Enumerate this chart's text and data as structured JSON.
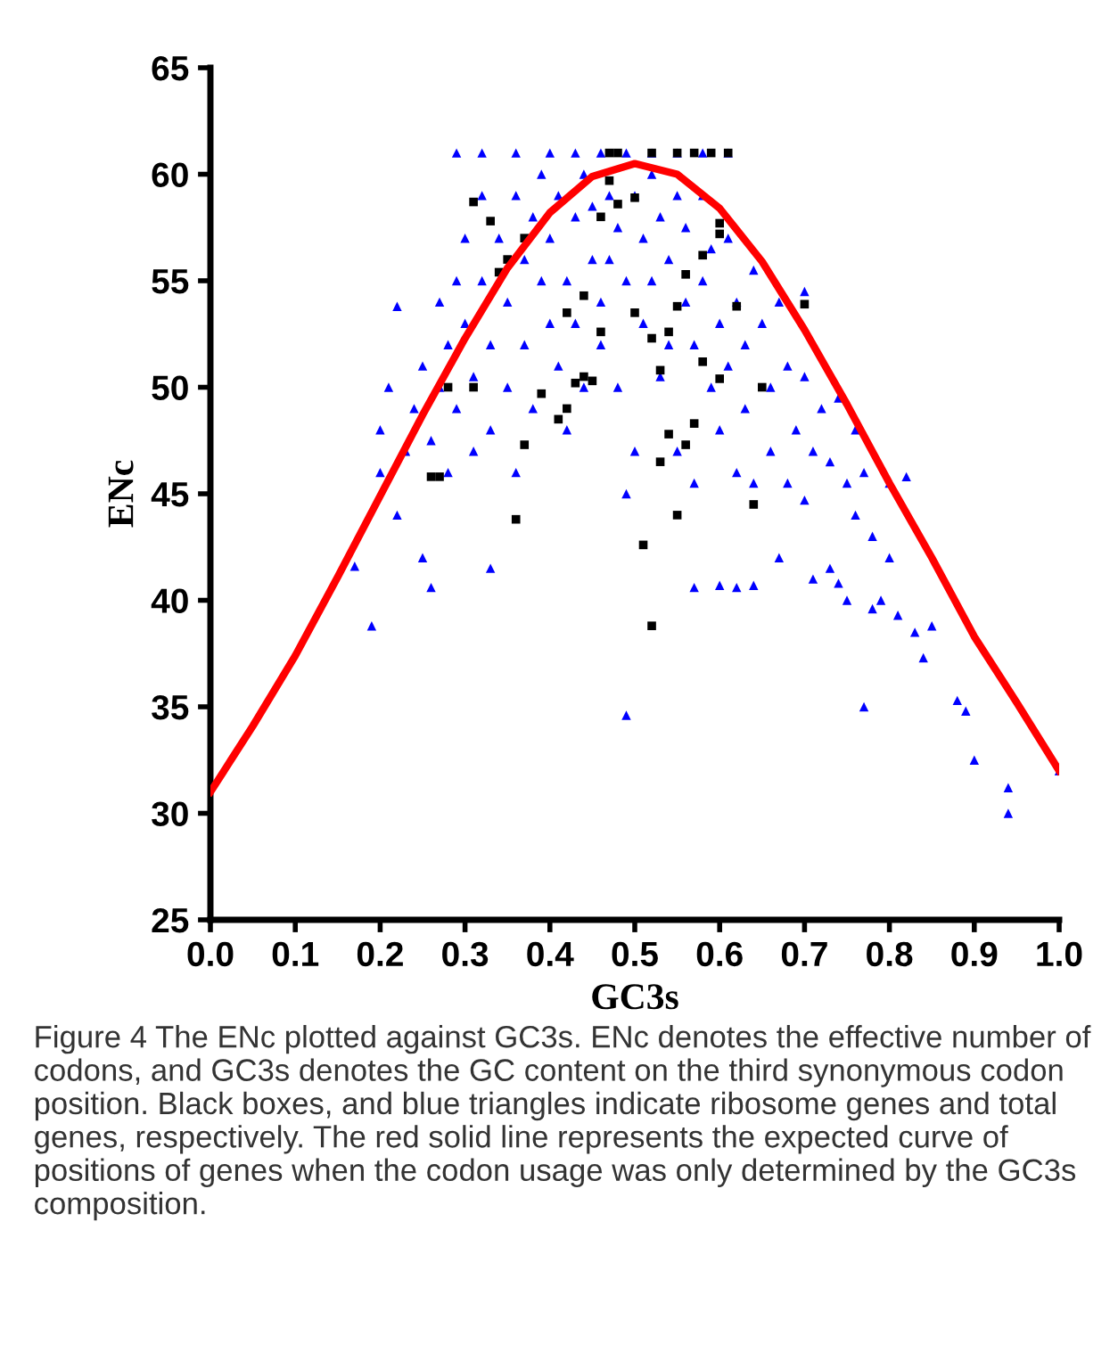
{
  "chart_data": {
    "type": "scatter",
    "xlabel": "GC3s",
    "ylabel": "ENc",
    "xlim": [
      0,
      1
    ],
    "ylim": [
      25,
      65
    ],
    "xticks": [
      {
        "value": 0,
        "label": "0.0"
      },
      {
        "value": 0.1,
        "label": "0.1"
      },
      {
        "value": 0.2,
        "label": "0.2"
      },
      {
        "value": 0.3,
        "label": "0.3"
      },
      {
        "value": 0.4,
        "label": "0.4"
      },
      {
        "value": 0.5,
        "label": "0.5"
      },
      {
        "value": 0.6,
        "label": "0.6"
      },
      {
        "value": 0.7,
        "label": "0.7"
      },
      {
        "value": 0.8,
        "label": "0.8"
      },
      {
        "value": 0.9,
        "label": "0.9"
      },
      {
        "value": 1,
        "label": "1.0"
      }
    ],
    "yticks": [
      25,
      30,
      35,
      40,
      45,
      50,
      55,
      60,
      65
    ],
    "grid": false,
    "legend": false,
    "series": [
      {
        "marker": "triangle",
        "color": "#0000ff",
        "x": [
          0.17,
          0.19,
          0.2,
          0.22,
          0.25,
          0.26,
          0.33,
          0.49,
          0.57,
          0.6,
          0.62,
          0.64,
          0.67,
          0.7,
          0.71,
          0.73,
          0.74,
          0.75,
          0.76,
          0.77,
          0.78,
          0.79,
          0.8,
          0.81,
          0.82,
          0.83,
          0.84,
          0.85,
          0.88,
          0.89,
          0.9,
          0.94,
          0.94,
          1.0,
          0.2,
          0.21,
          0.22,
          0.23,
          0.24,
          0.25,
          0.26,
          0.27,
          0.27,
          0.28,
          0.28,
          0.29,
          0.29,
          0.3,
          0.3,
          0.31,
          0.31,
          0.32,
          0.32,
          0.33,
          0.33,
          0.34,
          0.35,
          0.35,
          0.36,
          0.36,
          0.37,
          0.37,
          0.38,
          0.38,
          0.39,
          0.39,
          0.4,
          0.4,
          0.41,
          0.41,
          0.42,
          0.42,
          0.43,
          0.43,
          0.44,
          0.44,
          0.45,
          0.45,
          0.46,
          0.46,
          0.47,
          0.47,
          0.48,
          0.48,
          0.49,
          0.49,
          0.5,
          0.5,
          0.51,
          0.51,
          0.52,
          0.52,
          0.53,
          0.53,
          0.54,
          0.54,
          0.55,
          0.55,
          0.56,
          0.56,
          0.57,
          0.57,
          0.58,
          0.58,
          0.59,
          0.59,
          0.6,
          0.6,
          0.61,
          0.61,
          0.62,
          0.62,
          0.63,
          0.63,
          0.64,
          0.64,
          0.65,
          0.66,
          0.66,
          0.67,
          0.68,
          0.68,
          0.69,
          0.7,
          0.7,
          0.71,
          0.72,
          0.73,
          0.74,
          0.75,
          0.76,
          0.77,
          0.78,
          0.8,
          0.29,
          0.32,
          0.36,
          0.4,
          0.43,
          0.46,
          0.49,
          0.52,
          0.55,
          0.58,
          0.61
        ],
        "values": [
          41.6,
          38.8,
          46,
          44,
          42,
          40.6,
          41.5,
          34.6,
          40.6,
          40.7,
          40.6,
          40.7,
          42,
          44.7,
          41,
          41.5,
          40.8,
          40,
          44,
          35,
          39.6,
          40,
          42,
          39.3,
          45.8,
          38.5,
          37.3,
          38.8,
          35.3,
          34.8,
          32.5,
          31.2,
          30,
          32,
          48,
          50,
          53.8,
          47,
          49,
          51,
          47.5,
          54,
          50,
          52,
          46,
          55,
          49,
          57,
          53,
          50.5,
          47,
          55,
          59,
          52,
          48,
          57,
          54,
          50,
          59,
          46,
          56,
          52,
          58,
          49,
          55,
          60,
          53,
          57,
          51,
          59,
          55,
          48,
          58,
          53,
          60,
          50,
          56,
          58.5,
          54,
          52,
          59,
          56,
          57.5,
          50,
          55,
          45,
          59,
          47,
          57,
          53,
          60,
          55,
          50.5,
          58,
          56,
          52,
          59,
          47,
          54,
          57.5,
          52,
          45.5,
          55,
          59,
          50,
          56.5,
          53,
          48,
          57,
          51,
          54,
          46,
          52,
          49,
          55.5,
          45.5,
          53,
          50,
          47,
          54,
          51,
          45.5,
          48,
          50.5,
          54.5,
          47,
          49,
          46.5,
          49.5,
          45.5,
          48,
          46,
          43,
          45.5,
          61,
          61,
          61,
          61,
          61,
          61,
          61,
          61,
          61,
          61,
          61
        ]
      },
      {
        "marker": "square",
        "color": "#000000",
        "x": [
          0.26,
          0.27,
          0.28,
          0.31,
          0.36,
          0.37,
          0.39,
          0.41,
          0.42,
          0.43,
          0.44,
          0.45,
          0.46,
          0.42,
          0.44,
          0.47,
          0.47,
          0.48,
          0.46,
          0.48,
          0.5,
          0.52,
          0.55,
          0.57,
          0.59,
          0.61,
          0.5,
          0.52,
          0.53,
          0.55,
          0.54,
          0.53,
          0.54,
          0.55,
          0.51,
          0.52,
          0.56,
          0.57,
          0.58,
          0.6,
          0.6,
          0.6,
          0.62,
          0.64,
          0.65,
          0.7,
          0.58,
          0.56,
          0.35,
          0.37,
          0.34,
          0.31,
          0.33
        ],
        "values": [
          45.8,
          45.8,
          50,
          50,
          43.8,
          47.3,
          49.7,
          48.5,
          49,
          50.2,
          50.5,
          50.3,
          52.6,
          53.5,
          54.3,
          59.7,
          61,
          61,
          58,
          58.6,
          58.9,
          61,
          61,
          61,
          61,
          61,
          53.5,
          52.3,
          50.8,
          53.8,
          52.6,
          46.5,
          47.8,
          44,
          42.6,
          38.8,
          47.3,
          48.3,
          51.2,
          50.4,
          57.7,
          57.2,
          53.8,
          44.5,
          50,
          53.9,
          56.2,
          55.3,
          56,
          57,
          55.4,
          58.7,
          57.8
        ]
      },
      {
        "type": "line",
        "marker": "none",
        "line_style": "solid",
        "color": "#ff0000",
        "x": [
          0,
          0.05,
          0.1,
          0.15,
          0.2,
          0.25,
          0.3,
          0.35,
          0.4,
          0.45,
          0.5,
          0.55,
          0.6,
          0.65,
          0.7,
          0.75,
          0.8,
          0.85,
          0.9,
          0.95,
          1.0
        ],
        "values": [
          31,
          34.1,
          37.4,
          41.1,
          44.9,
          48.7,
          52.3,
          55.6,
          58.2,
          59.9,
          60.5,
          60,
          58.4,
          55.9,
          52.7,
          49.2,
          45.5,
          42,
          38.3,
          35.2,
          32
        ]
      }
    ],
    "annotations": [
      "Figure 4 The ENc plotted against GC3s. ENc denotes the effective number of codons, and GC3s denotes the GC content on the third synonymous codon position. Black boxes, and blue triangles indicate ribosome genes and total genes, respectively. The red solid line represents the expected curve of positions of genes when the codon usage was only determined by the GC3s composition."
    ]
  }
}
